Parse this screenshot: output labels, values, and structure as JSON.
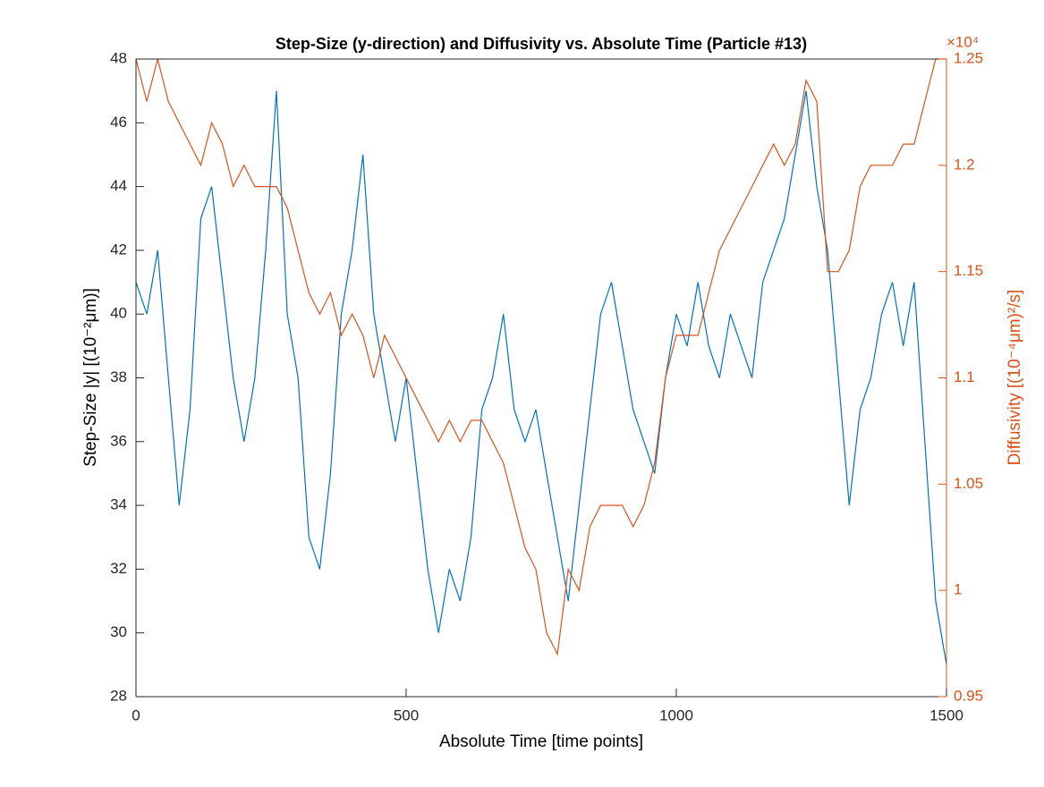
{
  "chart_data": {
    "type": "line",
    "title": "Step-Size (y-direction) and Diffusivity vs. Absolute Time (Particle #13)",
    "xlabel": "Absolute Time [time points]",
    "ylabel": "Step-Size |y| [(10⁻²μm)]",
    "y2label": "Diffusivity [(10⁻⁴μm)²/s]",
    "y2multiplier": "×10⁴",
    "x": [
      0,
      20,
      40,
      60,
      80,
      100,
      120,
      140,
      160,
      180,
      200,
      220,
      240,
      260,
      280,
      300,
      320,
      340,
      360,
      380,
      400,
      420,
      440,
      460,
      480,
      500,
      520,
      540,
      560,
      580,
      600,
      620,
      640,
      660,
      680,
      700,
      720,
      740,
      760,
      780,
      800,
      820,
      840,
      860,
      880,
      900,
      920,
      940,
      960,
      980,
      1000,
      1020,
      1040,
      1060,
      1080,
      1100,
      1120,
      1140,
      1160,
      1180,
      1200,
      1220,
      1240,
      1260,
      1280,
      1300,
      1320,
      1340,
      1360,
      1380,
      1400,
      1420,
      1440,
      1460,
      1480,
      1500
    ],
    "series": [
      {
        "color": "#0072bd",
        "axis": "y",
        "values": [
          41,
          40,
          42,
          38,
          34,
          37,
          43,
          44,
          41,
          38,
          36,
          38,
          42,
          47,
          40,
          38,
          33,
          32,
          35,
          40,
          42,
          45,
          40,
          38,
          36,
          38,
          35,
          32,
          30,
          32,
          31,
          33,
          37,
          38,
          40,
          37,
          36,
          37,
          35,
          33,
          31,
          34,
          37,
          40,
          41,
          39,
          37,
          36,
          35,
          38,
          40,
          39,
          41,
          39,
          38,
          40,
          39,
          38,
          41,
          42,
          43,
          45,
          47,
          44,
          42,
          38,
          34,
          37,
          38,
          40,
          41,
          39,
          41,
          36,
          31,
          29
        ]
      },
      {
        "color": "#d95319",
        "axis": "y2",
        "values": [
          1.25,
          1.23,
          1.25,
          1.23,
          1.22,
          1.21,
          1.2,
          1.22,
          1.21,
          1.19,
          1.2,
          1.19,
          1.19,
          1.19,
          1.18,
          1.16,
          1.14,
          1.13,
          1.14,
          1.12,
          1.13,
          1.12,
          1.1,
          1.12,
          1.11,
          1.1,
          1.09,
          1.08,
          1.07,
          1.08,
          1.07,
          1.08,
          1.08,
          1.07,
          1.06,
          1.04,
          1.02,
          1.01,
          0.98,
          0.97,
          1.01,
          1.0,
          1.03,
          1.04,
          1.04,
          1.04,
          1.03,
          1.04,
          1.06,
          1.1,
          1.12,
          1.12,
          1.12,
          1.14,
          1.16,
          1.17,
          1.18,
          1.19,
          1.2,
          1.21,
          1.2,
          1.21,
          1.24,
          1.23,
          1.15,
          1.15,
          1.16,
          1.19,
          1.2,
          1.2,
          1.2,
          1.21,
          1.21,
          1.23,
          1.25,
          1.25
        ]
      }
    ],
    "xlim": [
      0,
      1500
    ],
    "xticks": [
      0,
      500,
      1000,
      1500
    ],
    "ylim": [
      28,
      48
    ],
    "yticks": [
      28,
      30,
      32,
      34,
      36,
      38,
      40,
      42,
      44,
      46,
      48
    ],
    "y2lim": [
      0.95,
      1.25
    ],
    "y2ticks": [
      0.95,
      1,
      1.05,
      1.1,
      1.15,
      1.2,
      1.25
    ],
    "grid": false
  }
}
